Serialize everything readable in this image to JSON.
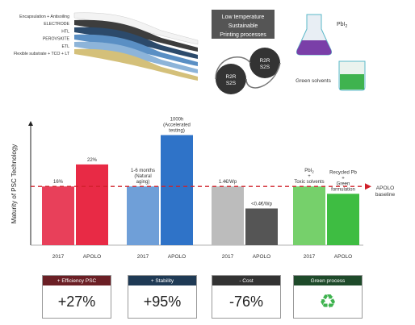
{
  "layers": [
    "Encapsulation + Antisoiling",
    "ELECTRODE",
    "HTL",
    "PEROVSKITE",
    "ETL",
    "Flexible substrate + TCO + LT"
  ],
  "printing_box": [
    "Low temperature",
    "Sustainable",
    "Printing processes"
  ],
  "r2r_label": [
    "R2R",
    "S2S"
  ],
  "pbi_label": "PbI",
  "pbi_sub": "2",
  "green_solvents": "Green solvents",
  "chart_data": {
    "type": "bar",
    "ylabel": "Maturity of PSC Technology",
    "baseline_label": [
      "APOLO",
      "baseline"
    ],
    "groups": [
      {
        "x": [
          "2017",
          "APOLO"
        ],
        "colors": [
          "#e8405a",
          "#e82a45"
        ],
        "values": [
          16,
          22
        ],
        "labels": [
          "16%",
          "22%"
        ]
      },
      {
        "x": [
          "2017",
          "APOLO"
        ],
        "colors": [
          "#6f9fd8",
          "#2f73c8"
        ],
        "values": [
          16,
          30
        ],
        "labels": [
          "1-6 months\n(Natural\naging)",
          "1000h\n(Accelerated\ntesting)"
        ]
      },
      {
        "x": [
          "2017",
          "APOLO"
        ],
        "colors": [
          "#bcbcbc",
          "#555555"
        ],
        "values": [
          16,
          10
        ],
        "labels": [
          "1.4€/Wp",
          "<0.4€/Wp"
        ]
      },
      {
        "x": [
          "2017",
          "APOLO"
        ],
        "colors": [
          "#76d06b",
          "#3ebd42"
        ],
        "values": [
          16,
          14
        ],
        "labels": [
          "PbI2\n+\nToxic solvents",
          "Recycled Pb\n+\nGreen\nformulation"
        ]
      }
    ],
    "baseline_value": 16
  },
  "summary": [
    {
      "title": "+ Efficiency PSC",
      "value": "+27%",
      "color": "#6b1f25"
    },
    {
      "title": "+ Stability",
      "value": "+95%",
      "color": "#1f3a55"
    },
    {
      "title": "- Cost",
      "value": "-76%",
      "color": "#333333"
    },
    {
      "title": "Green process",
      "value": "",
      "color": "#1e4a2a",
      "icon": "recycle-icon"
    }
  ]
}
